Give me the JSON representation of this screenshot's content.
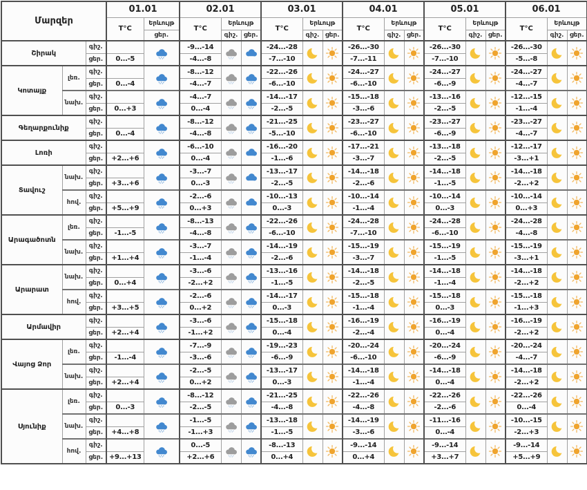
{
  "header": {
    "regions_label": "Մարզեր",
    "temp_label": "T°C",
    "phenomenon_label": "Երևույթ"
  },
  "labels": {
    "night": "գիշ.",
    "day": "ցեր."
  },
  "dates": [
    "01.01",
    "02.01",
    "03.01",
    "04.01",
    "05.01",
    "06.01"
  ],
  "icon_colors": {
    "sun": "#efa42e",
    "moon": "#f6c43b",
    "cloud_day": "#4288cf",
    "cloud_night": "#9d9d9d",
    "flakes_day": "#8cb6e0",
    "flakes_night": "#b9cfe6"
  },
  "regions": [
    {
      "name": "Շիրակ",
      "blocks": [
        {
          "zone": null,
          "d": [
            {
              "day": "0...-5",
              "iday": "snowcloud-blue"
            },
            {
              "night": "-9...-14",
              "day": "-4...-8",
              "inight": "snowcloud-gray",
              "iday": "cloud-blue"
            },
            {
              "night": "-24...-28",
              "day": "-7...-10",
              "inight": "moon",
              "iday": "sun"
            },
            {
              "night": "-26...-30",
              "day": "-7...-11",
              "inight": "moon",
              "iday": "sun"
            },
            {
              "night": "-26...-30",
              "day": "-7...-10",
              "inight": "moon",
              "iday": "sun"
            },
            {
              "night": "-26...-30",
              "day": "-5...-8",
              "inight": "moon",
              "iday": "sun"
            }
          ]
        }
      ]
    },
    {
      "name": "Կոտայք",
      "blocks": [
        {
          "zone": "լեռ.",
          "d": [
            {
              "day": "0...-4",
              "iday": "snowcloud-blue"
            },
            {
              "night": "-8...-12",
              "day": "-4...-7",
              "inight": "snowcloud-gray",
              "iday": "snowcloud-blue"
            },
            {
              "night": "-22...-26",
              "day": "-6...-10",
              "inight": "moon",
              "iday": "sun"
            },
            {
              "night": "-24...-27",
              "day": "-6...-10",
              "inight": "moon",
              "iday": "sun"
            },
            {
              "night": "-24...-27",
              "day": "-6...-9",
              "inight": "moon",
              "iday": "sun"
            },
            {
              "night": "-24...-27",
              "day": "-4...-7",
              "inight": "moon",
              "iday": "sun"
            }
          ]
        },
        {
          "zone": "նախ.",
          "d": [
            {
              "day": "0...+3",
              "iday": "snowcloud-blue"
            },
            {
              "night": "-4...-7",
              "day": "0...-4",
              "inight": "snowcloud-gray",
              "iday": "snowcloud-blue"
            },
            {
              "night": "-14...-17",
              "day": "-2...-5",
              "inight": "moon",
              "iday": "sun"
            },
            {
              "night": "-15...-18",
              "day": "-3...-6",
              "inight": "moon",
              "iday": "sun"
            },
            {
              "night": "-13...-16",
              "day": "-2...-5",
              "inight": "moon",
              "iday": "sun"
            },
            {
              "night": "-12...-15",
              "day": "-1...-4",
              "inight": "moon",
              "iday": "sun"
            }
          ]
        }
      ]
    },
    {
      "name": "Գեղարքունիք",
      "blocks": [
        {
          "zone": null,
          "d": [
            {
              "day": "0...-4",
              "iday": "snowcloud-blue"
            },
            {
              "night": "-8...-12",
              "day": "-4...-8",
              "inight": "snowcloud-gray",
              "iday": "snowcloud-blue"
            },
            {
              "night": "-21...-25",
              "day": "-5...-10",
              "inight": "moon",
              "iday": "sun"
            },
            {
              "night": "-23...-27",
              "day": "-6...-10",
              "inight": "moon",
              "iday": "sun"
            },
            {
              "night": "-23...-27",
              "day": "-6...-9",
              "inight": "moon",
              "iday": "sun"
            },
            {
              "night": "-23...-27",
              "day": "-4...-7",
              "inight": "moon",
              "iday": "sun"
            }
          ]
        }
      ]
    },
    {
      "name": "Լոռի",
      "blocks": [
        {
          "zone": null,
          "d": [
            {
              "day": "+2...+6",
              "iday": "snowcloud-blue"
            },
            {
              "night": "-6...-10",
              "day": "0...-4",
              "inight": "snowcloud-gray",
              "iday": "cloud-blue"
            },
            {
              "night": "-16...-20",
              "day": "-1...-6",
              "inight": "moon",
              "iday": "sun"
            },
            {
              "night": "-17...-21",
              "day": "-3...-7",
              "inight": "moon",
              "iday": "sun"
            },
            {
              "night": "-13...-18",
              "day": "-2...-5",
              "inight": "moon",
              "iday": "sun"
            },
            {
              "night": "-12...-17",
              "day": "-3...+1",
              "inight": "moon",
              "iday": "sun"
            }
          ]
        }
      ]
    },
    {
      "name": "Տավուշ",
      "blocks": [
        {
          "zone": "նախ.",
          "d": [
            {
              "day": "+3...+6",
              "iday": "snowcloud-blue"
            },
            {
              "night": "-3...-7",
              "day": "0...-3",
              "inight": "snowcloud-gray",
              "iday": "cloud-blue"
            },
            {
              "night": "-13...-17",
              "day": "-2...-5",
              "inight": "moon",
              "iday": "sun"
            },
            {
              "night": "-14...-18",
              "day": "-2...-6",
              "inight": "moon",
              "iday": "sun"
            },
            {
              "night": "-14...-18",
              "day": "-1...-5",
              "inight": "moon",
              "iday": "sun"
            },
            {
              "night": "-14...-18",
              "day": "-2...+2",
              "inight": "moon",
              "iday": "sun"
            }
          ]
        },
        {
          "zone": "հով.",
          "d": [
            {
              "day": "+5...+9",
              "iday": "snowcloud-blue"
            },
            {
              "night": "-2...-6",
              "day": "0...+3",
              "inight": "snowcloud-gray",
              "iday": "cloud-blue"
            },
            {
              "night": "-10...-13",
              "day": "0...-3",
              "inight": "moon",
              "iday": "sun"
            },
            {
              "night": "-10...-14",
              "day": "-1...-4",
              "inight": "moon",
              "iday": "sun"
            },
            {
              "night": "-10...-14",
              "day": "0...-3",
              "inight": "moon",
              "iday": "sun"
            },
            {
              "night": "-10...-14",
              "day": "0...+3",
              "inight": "moon",
              "iday": "sun"
            }
          ]
        }
      ]
    },
    {
      "name": "Արագածոտն",
      "blocks": [
        {
          "zone": "լեռ.",
          "d": [
            {
              "day": "-1...-5",
              "iday": "snowcloud-blue"
            },
            {
              "night": "-8...-13",
              "day": "-4...-8",
              "inight": "snowcloud-gray",
              "iday": "snowcloud-blue"
            },
            {
              "night": "-22...-26",
              "day": "-6...-10",
              "inight": "moon",
              "iday": "sun"
            },
            {
              "night": "-24...-28",
              "day": "-7...-10",
              "inight": "moon",
              "iday": "sun"
            },
            {
              "night": "-24...-28",
              "day": "-6...-10",
              "inight": "moon",
              "iday": "sun"
            },
            {
              "night": "-24...-28",
              "day": "-4...-8",
              "inight": "moon",
              "iday": "sun"
            }
          ]
        },
        {
          "zone": "նախ.",
          "d": [
            {
              "day": "+1...+4",
              "iday": "snowcloud-blue"
            },
            {
              "night": "-3...-7",
              "day": "-1...-4",
              "inight": "snowcloud-gray",
              "iday": "snowcloud-blue"
            },
            {
              "night": "-14...-19",
              "day": "-2...-6",
              "inight": "moon",
              "iday": "sun"
            },
            {
              "night": "-15...-19",
              "day": "-3...-7",
              "inight": "moon",
              "iday": "sun"
            },
            {
              "night": "-15...-19",
              "day": "-1...-5",
              "inight": "moon",
              "iday": "sun"
            },
            {
              "night": "-15...-19",
              "day": "-3...+1",
              "inight": "moon",
              "iday": "sun"
            }
          ]
        }
      ]
    },
    {
      "name": "Արարատ",
      "blocks": [
        {
          "zone": "նախ.",
          "d": [
            {
              "day": "0...+4",
              "iday": "snowcloud-blue"
            },
            {
              "night": "-3...-6",
              "day": "-2...+2",
              "inight": "snowcloud-gray",
              "iday": "snowcloud-blue"
            },
            {
              "night": "-13...-16",
              "day": "-1...-5",
              "inight": "moon",
              "iday": "sun"
            },
            {
              "night": "-14...-18",
              "day": "-2...-5",
              "inight": "moon",
              "iday": "sun"
            },
            {
              "night": "-14...-18",
              "day": "-1...-4",
              "inight": "moon",
              "iday": "sun"
            },
            {
              "night": "-14...-18",
              "day": "-2...+2",
              "inight": "moon",
              "iday": "sun"
            }
          ]
        },
        {
          "zone": "հով.",
          "d": [
            {
              "day": "+3...+5",
              "iday": "snowcloud-blue"
            },
            {
              "night": "-2...-6",
              "day": "0...+2",
              "inight": "snowcloud-gray",
              "iday": "snowcloud-blue"
            },
            {
              "night": "-14...-17",
              "day": "0...-3",
              "inight": "moon",
              "iday": "sun"
            },
            {
              "night": "-15...-18",
              "day": "-1...-4",
              "inight": "moon",
              "iday": "sun"
            },
            {
              "night": "-15...-18",
              "day": "0...-3",
              "inight": "moon",
              "iday": "sun"
            },
            {
              "night": "-15...-18",
              "day": "-1...+3",
              "inight": "moon",
              "iday": "sun"
            }
          ]
        }
      ]
    },
    {
      "name": "Արմավիր",
      "blocks": [
        {
          "zone": null,
          "d": [
            {
              "day": "+2...+4",
              "iday": "snowcloud-blue"
            },
            {
              "night": "-3...-6",
              "day": "-1...+2",
              "inight": "snowcloud-gray",
              "iday": "snowcloud-blue"
            },
            {
              "night": "-15...-18",
              "day": "0...-4",
              "inight": "moon",
              "iday": "sun"
            },
            {
              "night": "-16...-19",
              "day": "-2...-4",
              "inight": "moon",
              "iday": "sun"
            },
            {
              "night": "-16...-19",
              "day": "0...-4",
              "inight": "moon",
              "iday": "sun"
            },
            {
              "night": "-16...-19",
              "day": "-2...+2",
              "inight": "moon",
              "iday": "sun"
            }
          ]
        }
      ]
    },
    {
      "name": "Վայոց Ձոր",
      "blocks": [
        {
          "zone": "լեռ.",
          "d": [
            {
              "day": "-1...-4",
              "iday": "snowcloud-blue"
            },
            {
              "night": "-7...-9",
              "day": "-3...-6",
              "inight": "snowcloud-gray",
              "iday": "snowcloud-blue"
            },
            {
              "night": "-19...-23",
              "day": "-6...-9",
              "inight": "moon",
              "iday": "sun"
            },
            {
              "night": "-20...-24",
              "day": "-6...-10",
              "inight": "moon",
              "iday": "sun"
            },
            {
              "night": "-20...-24",
              "day": "-6...-9",
              "inight": "moon",
              "iday": "sun"
            },
            {
              "night": "-20...-24",
              "day": "-4...-7",
              "inight": "moon",
              "iday": "sun"
            }
          ]
        },
        {
          "zone": "նախ.",
          "d": [
            {
              "day": "+2...+4",
              "iday": "snowcloud-blue"
            },
            {
              "night": "-2...-5",
              "day": "0...+2",
              "inight": "snowcloud-gray",
              "iday": "snowcloud-blue"
            },
            {
              "night": "-13...-17",
              "day": "0...-3",
              "inight": "moon",
              "iday": "sun"
            },
            {
              "night": "-14...-18",
              "day": "-1...-4",
              "inight": "moon",
              "iday": "sun"
            },
            {
              "night": "-14...-18",
              "day": "0...-4",
              "inight": "moon",
              "iday": "sun"
            },
            {
              "night": "-14...-18",
              "day": "-2...+2",
              "inight": "moon",
              "iday": "sun"
            }
          ]
        }
      ]
    },
    {
      "name": "Սյունիք",
      "blocks": [
        {
          "zone": "լեռ.",
          "d": [
            {
              "day": "0...-3",
              "iday": "snowcloud-blue"
            },
            {
              "night": "-8...-12",
              "day": "-2...-5",
              "inight": "snowcloud-gray",
              "iday": "snowcloud-blue"
            },
            {
              "night": "-21...-25",
              "day": "-4...-8",
              "inight": "moon",
              "iday": "sun"
            },
            {
              "night": "-22...-26",
              "day": "-4...-8",
              "inight": "moon",
              "iday": "sun"
            },
            {
              "night": "-22...-26",
              "day": "-2...-6",
              "inight": "moon",
              "iday": "sun"
            },
            {
              "night": "-22...-26",
              "day": "0...-4",
              "inight": "moon",
              "iday": "sun"
            }
          ]
        },
        {
          "zone": "նախ.",
          "d": [
            {
              "day": "+4...+8",
              "iday": "snowcloud-blue"
            },
            {
              "night": "-1...-5",
              "day": "-1...+3",
              "inight": "snowcloud-gray",
              "iday": "snowcloud-blue"
            },
            {
              "night": "-13...-18",
              "day": "-1...-5",
              "inight": "moon",
              "iday": "sun"
            },
            {
              "night": "-14...-19",
              "day": "-3...-6",
              "inight": "moon",
              "iday": "sun"
            },
            {
              "night": "-11...-16",
              "day": "0...-4",
              "inight": "moon",
              "iday": "sun"
            },
            {
              "night": "-10...-15",
              "day": "-2...+3",
              "inight": "moon",
              "iday": "sun"
            }
          ]
        },
        {
          "zone": "հով.",
          "d": [
            {
              "day": "+9...+13",
              "iday": "snowcloud-blue"
            },
            {
              "night": "0...-5",
              "day": "+2...+6",
              "inight": "snowcloud-gray",
              "iday": "snowcloud-blue"
            },
            {
              "night": "-8...-13",
              "day": "0...+4",
              "inight": "moon",
              "iday": "sun"
            },
            {
              "night": "-9...-14",
              "day": "0...+4",
              "inight": "moon",
              "iday": "sun"
            },
            {
              "night": "-9...-14",
              "day": "+3...+7",
              "inight": "moon",
              "iday": "sun"
            },
            {
              "night": "-9...-14",
              "day": "+5...+9",
              "inight": "moon",
              "iday": "sun"
            }
          ]
        }
      ]
    }
  ]
}
